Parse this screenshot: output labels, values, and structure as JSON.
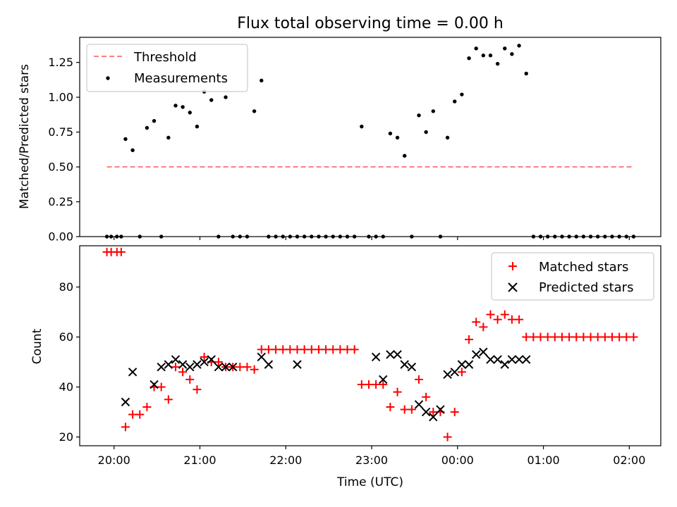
{
  "chart_data": [
    {
      "type": "scatter",
      "title": "Flux total observing time = 0.00 h",
      "xlabel": "",
      "ylabel": "Matched/Predicted stars",
      "ylim": [
        0,
        1.43
      ],
      "yticks": [
        "0.00",
        "0.25",
        "0.50",
        "0.75",
        "1.00",
        "1.25"
      ],
      "legend": "top-left",
      "grid": false,
      "threshold": {
        "name": "Threshold",
        "value": 0.5,
        "x_range": [
          "19:55",
          "02:03"
        ],
        "color": "#ff7f7f",
        "style": "dashed"
      },
      "series": [
        {
          "name": "Measurements",
          "color": "#000000",
          "marker": "dot",
          "x": [
            "19:55",
            "19:58",
            "20:02",
            "20:05",
            "20:08",
            "20:13",
            "20:18",
            "20:23",
            "20:28",
            "20:33",
            "20:38",
            "20:43",
            "20:48",
            "20:53",
            "20:58",
            "21:03",
            "21:08",
            "21:13",
            "21:18",
            "21:23",
            "21:28",
            "21:33",
            "21:38",
            "21:43",
            "21:48",
            "21:53",
            "21:58",
            "22:03",
            "22:08",
            "22:13",
            "22:18",
            "22:23",
            "22:28",
            "22:33",
            "22:38",
            "22:43",
            "22:48",
            "22:53",
            "22:58",
            "23:03",
            "23:08",
            "23:13",
            "23:18",
            "23:23",
            "23:28",
            "23:33",
            "23:38",
            "23:43",
            "23:48",
            "23:53",
            "23:58",
            "00:03",
            "00:08",
            "00:13",
            "00:18",
            "00:23",
            "00:28",
            "00:33",
            "00:38",
            "00:43",
            "00:48",
            "00:53",
            "00:58",
            "01:03",
            "01:08",
            "01:13",
            "01:18",
            "01:23",
            "01:28",
            "01:33",
            "01:38",
            "01:43",
            "01:48",
            "01:53",
            "01:58",
            "02:03"
          ],
          "y": [
            0,
            0,
            0,
            0,
            0.7,
            0.62,
            0,
            0.78,
            0.83,
            0,
            0.71,
            0.94,
            0.93,
            0.89,
            0.79,
            1.04,
            0.98,
            0,
            1.0,
            0,
            0,
            0,
            0.9,
            1.12,
            0,
            0,
            0,
            0,
            0,
            0,
            0,
            0,
            0,
            0,
            0,
            0,
            0,
            0.79,
            0,
            0,
            0,
            0.74,
            0.71,
            0.58,
            0,
            0.87,
            0.75,
            0.9,
            0,
            0.71,
            0.97,
            1.02,
            1.28,
            1.35,
            1.3,
            1.3,
            1.24,
            1.35,
            1.31,
            1.37,
            1.17,
            0,
            0,
            0,
            0,
            0,
            0,
            0,
            0,
            0,
            0,
            0,
            0,
            0,
            0,
            0
          ]
        }
      ]
    },
    {
      "type": "scatter",
      "title": "",
      "xlabel": "Time (UTC)",
      "ylabel": "Count",
      "ylim": [
        16.5,
        96.5
      ],
      "yticks": [
        "20",
        "40",
        "60",
        "80"
      ],
      "xlim": [
        "19:36",
        "02:22"
      ],
      "xticks": [
        "20:00",
        "21:00",
        "22:00",
        "23:00",
        "00:00",
        "01:00",
        "02:00"
      ],
      "legend": "top-right",
      "grid": false,
      "series": [
        {
          "name": "Matched stars",
          "color": "#ff0000",
          "marker": "plus",
          "x": [
            "19:55",
            "19:58",
            "20:02",
            "20:05",
            "20:08",
            "20:13",
            "20:18",
            "20:23",
            "20:28",
            "20:33",
            "20:38",
            "20:43",
            "20:48",
            "20:53",
            "20:58",
            "21:03",
            "21:08",
            "21:13",
            "21:18",
            "21:23",
            "21:28",
            "21:33",
            "21:38",
            "21:43",
            "21:48",
            "21:53",
            "21:58",
            "22:03",
            "22:08",
            "22:13",
            "22:18",
            "22:23",
            "22:28",
            "22:33",
            "22:38",
            "22:43",
            "22:48",
            "22:53",
            "22:58",
            "23:03",
            "23:08",
            "23:13",
            "23:18",
            "23:23",
            "23:28",
            "23:33",
            "23:38",
            "23:43",
            "23:48",
            "23:53",
            "23:58",
            "00:03",
            "00:08",
            "00:13",
            "00:18",
            "00:23",
            "00:28",
            "00:33",
            "00:38",
            "00:43",
            "00:48",
            "00:53",
            "00:58",
            "01:03",
            "01:08",
            "01:13",
            "01:18",
            "01:23",
            "01:28",
            "01:33",
            "01:38",
            "01:43",
            "01:48",
            "01:53",
            "01:58",
            "02:03"
          ],
          "y": [
            94,
            94,
            94,
            94,
            24,
            29,
            29,
            32,
            40,
            40,
            35,
            48,
            46,
            43,
            39,
            52,
            50,
            50,
            48,
            48,
            48,
            48,
            47,
            55,
            55,
            55,
            55,
            55,
            55,
            55,
            55,
            55,
            55,
            55,
            55,
            55,
            55,
            41,
            41,
            41,
            41,
            32,
            38,
            31,
            31,
            43,
            36,
            30,
            30,
            20,
            30,
            46,
            59,
            66,
            64,
            69,
            67,
            69,
            67,
            67,
            60,
            60,
            60,
            60,
            60,
            60,
            60,
            60,
            60,
            60,
            60,
            60,
            60,
            60,
            60,
            60
          ]
        },
        {
          "name": "Predicted stars",
          "color": "#000000",
          "marker": "x",
          "x": [
            "20:08",
            "20:13",
            "20:28",
            "20:33",
            "20:38",
            "20:43",
            "20:48",
            "20:53",
            "20:58",
            "21:03",
            "21:08",
            "21:13",
            "21:18",
            "21:23",
            "21:43",
            "21:48",
            "22:08",
            "23:03",
            "23:08",
            "23:13",
            "23:18",
            "23:23",
            "23:28",
            "23:33",
            "23:38",
            "23:43",
            "23:48",
            "23:53",
            "23:58",
            "00:03",
            "00:08",
            "00:13",
            "00:18",
            "00:23",
            "00:28",
            "00:33",
            "00:38",
            "00:43",
            "00:48"
          ],
          "y": [
            34,
            46,
            41,
            48,
            49,
            51,
            49,
            48,
            49,
            50,
            51,
            48,
            48,
            48,
            52,
            49,
            49,
            52,
            43,
            53,
            53,
            49,
            48,
            33,
            30,
            28,
            31,
            45,
            46,
            49,
            49,
            53,
            54,
            51,
            51,
            49,
            51,
            51,
            51
          ]
        }
      ]
    }
  ]
}
